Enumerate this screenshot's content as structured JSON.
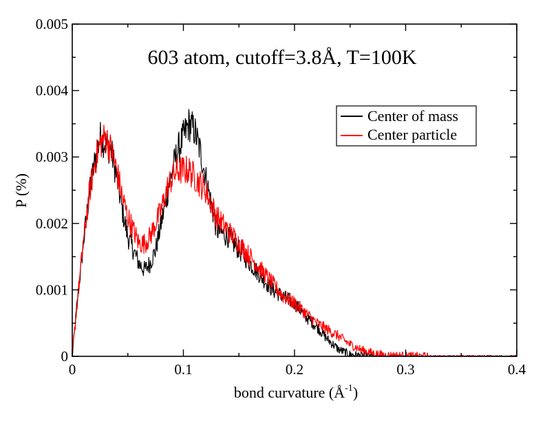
{
  "chart_data": {
    "type": "line",
    "title": "603 atom, cutoff=3.8Å, T=100K",
    "xlabel": "bond curvature (Å",
    "xlabel_sup": "-1",
    "xlabel_close": ")",
    "ylabel": "P (%)",
    "xlim": [
      0,
      0.4
    ],
    "ylim": [
      0,
      0.005
    ],
    "xticks": [
      "0",
      "0.1",
      "0.2",
      "0.3",
      "0.4"
    ],
    "yticks": [
      "0",
      "0.001",
      "0.002",
      "0.003",
      "0.004",
      "0.005"
    ],
    "legend_position": "top-right",
    "grid": false,
    "series": [
      {
        "name": "Center of mass",
        "color": "#000000",
        "x": [
          0,
          0.005,
          0.01,
          0.015,
          0.02,
          0.025,
          0.03,
          0.035,
          0.04,
          0.045,
          0.05,
          0.055,
          0.06,
          0.065,
          0.07,
          0.075,
          0.08,
          0.085,
          0.09,
          0.095,
          0.1,
          0.105,
          0.11,
          0.115,
          0.12,
          0.125,
          0.13,
          0.14,
          0.15,
          0.16,
          0.17,
          0.18,
          0.19,
          0.2,
          0.21,
          0.22,
          0.23,
          0.24,
          0.25,
          0.26,
          0.27,
          0.28,
          0.3,
          0.32,
          0.35,
          0.4
        ],
        "y": [
          0,
          0.0009,
          0.0017,
          0.0024,
          0.0029,
          0.0033,
          0.0032,
          0.0031,
          0.0027,
          0.0022,
          0.0018,
          0.0016,
          0.0014,
          0.0013,
          0.0014,
          0.0016,
          0.002,
          0.0024,
          0.0028,
          0.0031,
          0.0033,
          0.0035,
          0.0034,
          0.0031,
          0.0027,
          0.0023,
          0.0019,
          0.0018,
          0.0016,
          0.0014,
          0.0012,
          0.001,
          0.0009,
          0.0008,
          0.0006,
          0.00045,
          0.00025,
          0.0001,
          3e-05,
          1e-05,
          0,
          0,
          0,
          0,
          0,
          0
        ]
      },
      {
        "name": "Center particle",
        "color": "#ff0000",
        "x": [
          0,
          0.005,
          0.01,
          0.015,
          0.02,
          0.025,
          0.03,
          0.035,
          0.04,
          0.045,
          0.05,
          0.055,
          0.06,
          0.065,
          0.07,
          0.075,
          0.08,
          0.085,
          0.09,
          0.095,
          0.1,
          0.105,
          0.11,
          0.115,
          0.12,
          0.125,
          0.13,
          0.14,
          0.15,
          0.16,
          0.17,
          0.18,
          0.19,
          0.2,
          0.21,
          0.22,
          0.23,
          0.24,
          0.25,
          0.26,
          0.27,
          0.28,
          0.3,
          0.32,
          0.35,
          0.4
        ],
        "y": [
          0,
          0.0009,
          0.0017,
          0.0024,
          0.0029,
          0.0032,
          0.0033,
          0.0031,
          0.0028,
          0.0024,
          0.0021,
          0.0019,
          0.0017,
          0.0017,
          0.0018,
          0.002,
          0.0022,
          0.0025,
          0.0027,
          0.0028,
          0.0028,
          0.0028,
          0.0027,
          0.0026,
          0.0025,
          0.0023,
          0.0021,
          0.0019,
          0.0017,
          0.0015,
          0.0013,
          0.0011,
          0.0009,
          0.0008,
          0.00065,
          0.0005,
          0.0004,
          0.0003,
          0.00018,
          0.0001,
          5e-05,
          2e-05,
          1e-05,
          0,
          0,
          0
        ]
      }
    ]
  }
}
